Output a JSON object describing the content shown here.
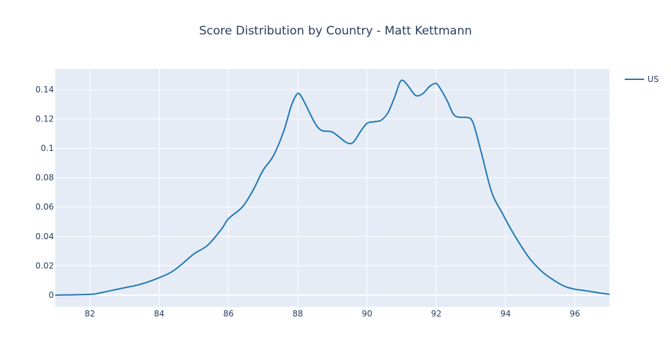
{
  "chart_data": {
    "type": "line",
    "title": "Score Distribution by Country - Matt Kettmann",
    "xlabel": "",
    "ylabel": "",
    "xlim": [
      81,
      97
    ],
    "ylim": [
      -0.008,
      0.154
    ],
    "grid": true,
    "legend_position": "top-right",
    "colors": {
      "plot_bg": "#e5ecf6",
      "grid": "#ffffff",
      "line": "#1f77b4",
      "text": "#2a3f5f"
    },
    "x_ticks": [
      82,
      84,
      86,
      88,
      90,
      92,
      94,
      96
    ],
    "y_ticks": [
      0,
      0.02,
      0.04,
      0.06,
      0.08,
      0.1,
      0.12,
      0.14
    ],
    "y_tick_labels": [
      "0",
      "0.02",
      "0.04",
      "0.06",
      "0.08",
      "0.1",
      "0.12",
      "0.14"
    ],
    "series": [
      {
        "name": "US",
        "x": [
          81,
          82,
          82.3,
          82.6,
          83,
          83.4,
          83.8,
          84.3,
          84.6,
          85,
          85.4,
          85.8,
          86,
          86.4,
          86.7,
          87,
          87.3,
          87.6,
          87.8,
          87.95,
          88.05,
          88.2,
          88.5,
          88.7,
          89,
          89.4,
          89.6,
          89.8,
          90,
          90.2,
          90.4,
          90.6,
          90.8,
          90.95,
          91.05,
          91.2,
          91.4,
          91.6,
          91.8,
          91.95,
          92.05,
          92.3,
          92.5,
          92.7,
          92.85,
          93.05,
          93.3,
          93.6,
          93.9,
          94.2,
          94.6,
          94.8,
          95.1,
          95.4,
          95.7,
          96,
          96.3,
          96.7,
          97
        ],
        "y": [
          0,
          0.0005,
          0.0015,
          0.003,
          0.005,
          0.007,
          0.01,
          0.015,
          0.02,
          0.028,
          0.034,
          0.045,
          0.052,
          0.06,
          0.071,
          0.085,
          0.095,
          0.112,
          0.128,
          0.136,
          0.137,
          0.131,
          0.117,
          0.112,
          0.111,
          0.104,
          0.104,
          0.111,
          0.117,
          0.118,
          0.119,
          0.124,
          0.135,
          0.145,
          0.146,
          0.142,
          0.136,
          0.137,
          0.142,
          0.144,
          0.143,
          0.133,
          0.123,
          0.121,
          0.121,
          0.118,
          0.097,
          0.07,
          0.056,
          0.043,
          0.028,
          0.022,
          0.015,
          0.01,
          0.006,
          0.004,
          0.003,
          0.0015,
          0.0005
        ]
      }
    ]
  }
}
